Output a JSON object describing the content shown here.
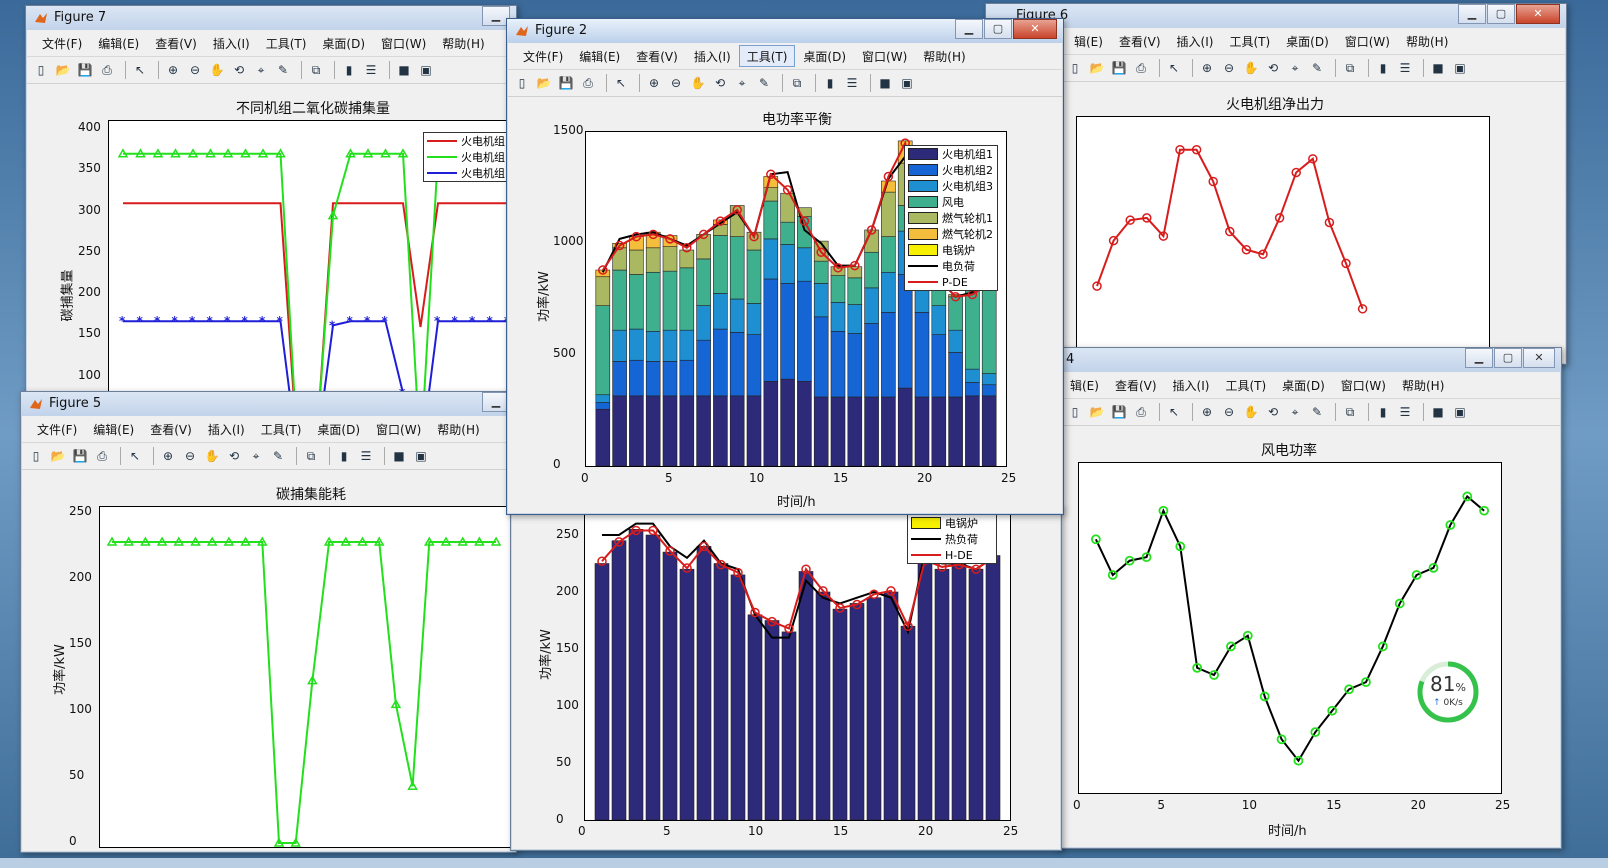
{
  "windows": {
    "fig7": {
      "title": "Figure 7",
      "plot_title": "不同机组二氧化碳捕集量",
      "ylabel": "碳捕集量"
    },
    "fig6": {
      "title": "Figure 6",
      "plot_title": "火电机组净出力"
    },
    "fig5": {
      "title": "Figure 5",
      "plot_title": "碳捕集能耗",
      "ylabel": "功率/kW"
    },
    "fig2": {
      "title": "Figure 2",
      "plot_title": "电功率平衡",
      "ylabel": "功率/kW",
      "xlabel": "时间/h"
    },
    "fig3": {
      "ylabel": "功率/kW"
    },
    "fig4": {
      "title_partial": "4",
      "plot_title": "风电功率",
      "xlabel": "时间/h"
    }
  },
  "menu": [
    "文件(F)",
    "编辑(E)",
    "查看(V)",
    "插入(I)",
    "工具(T)",
    "桌面(D)",
    "窗口(W)",
    "帮助(H)"
  ],
  "menu_tools_highlighted": "工具(T)",
  "menu_partial": [
    "辑(E)",
    "查看(V)",
    "插入(I)",
    "工具(T)",
    "桌面(D)",
    "窗口(W)",
    "帮助(H)"
  ],
  "toolbar_icons": [
    "new-file-icon",
    "open-folder-icon",
    "save-icon",
    "print-icon",
    "pointer-icon",
    "zoom-in-icon",
    "zoom-out-icon",
    "pan-hand-icon",
    "rotate-3d-icon",
    "data-cursor-icon",
    "brush-icon",
    "link-plot-icon",
    "colorbar-icon",
    "legend-icon",
    "hide-plot-tools-icon",
    "show-plot-tools-icon"
  ],
  "fig7_legend": [
    "火电机组",
    "火电机组",
    "火电机组"
  ],
  "fig2_legend": [
    "火电机组1",
    "火电机组2",
    "火电机组3",
    "风电",
    "燃气轮机1",
    "燃气轮机2",
    "电锅炉",
    "电负荷",
    "P-DE"
  ],
  "fig3_legend": [
    "电锅炉",
    "热负荷",
    "H-DE"
  ],
  "colors": {
    "unit1": "#2e2a7a",
    "unit2": "#1565d4",
    "unit3": "#1e8fd1",
    "wind": "#3fb08e",
    "gt1": "#a9b861",
    "gt2": "#f5bd3c",
    "eboiler": "#f7f000",
    "red": "#d81c1c",
    "green": "#22e01c",
    "blue": "#1f1fd8"
  },
  "gauge": {
    "percent": "81",
    "unit": "%",
    "speed": "0K/s"
  },
  "chart_data": [
    {
      "id": "fig2",
      "type": "bar",
      "stacked": true,
      "title": "电功率平衡",
      "xlabel": "时间/h",
      "ylabel": "功率/kW",
      "xlim": [
        0,
        25
      ],
      "ylim": [
        0,
        1500
      ],
      "xticks": [
        0,
        5,
        10,
        15,
        20,
        25
      ],
      "yticks": [
        0,
        500,
        1000,
        1500
      ],
      "x": [
        1,
        2,
        3,
        4,
        5,
        6,
        7,
        8,
        9,
        10,
        11,
        12,
        13,
        14,
        15,
        16,
        17,
        18,
        19,
        20,
        21,
        22,
        23,
        24
      ],
      "series": [
        {
          "name": "火电机组1",
          "values": [
            255,
            315,
            315,
            315,
            315,
            315,
            315,
            315,
            315,
            315,
            380,
            390,
            380,
            310,
            310,
            310,
            310,
            310,
            350,
            310,
            310,
            310,
            315,
            315
          ]
        },
        {
          "name": "火电机组2",
          "values": [
            30,
            155,
            160,
            155,
            155,
            160,
            250,
            300,
            285,
            275,
            460,
            430,
            450,
            360,
            295,
            285,
            330,
            380,
            510,
            380,
            280,
            200,
            60,
            50
          ]
        },
        {
          "name": "火电机组3",
          "values": [
            35,
            140,
            140,
            135,
            140,
            135,
            155,
            160,
            150,
            140,
            180,
            175,
            150,
            150,
            130,
            130,
            160,
            180,
            195,
            175,
            130,
            100,
            60,
            50
          ]
        },
        {
          "name": "风电",
          "values": [
            400,
            270,
            245,
            265,
            265,
            280,
            210,
            260,
            280,
            240,
            170,
            100,
            140,
            100,
            120,
            120,
            160,
            160,
            115,
            100,
            130,
            150,
            400,
            450
          ]
        },
        {
          "name": "燃气轮机1",
          "values": [
            130,
            100,
            110,
            110,
            110,
            80,
            110,
            50,
            140,
            80,
            60,
            130,
            40,
            90,
            40,
            50,
            100,
            200,
            190,
            40,
            50,
            10,
            0,
            0
          ]
        },
        {
          "name": "燃气轮机2",
          "values": [
            30,
            20,
            60,
            70,
            50,
            0,
            0,
            20,
            0,
            0,
            50,
            0,
            0,
            0,
            0,
            0,
            0,
            50,
            100,
            0,
            0,
            0,
            0,
            0
          ]
        },
        {
          "name": "电锅炉",
          "values": [
            0,
            0,
            0,
            0,
            0,
            0,
            0,
            0,
            0,
            0,
            0,
            0,
            0,
            0,
            0,
            0,
            0,
            0,
            0,
            0,
            0,
            0,
            0,
            0
          ]
        }
      ],
      "lines": [
        {
          "name": "电负荷",
          "values": [
            870,
            1020,
            1040,
            1050,
            1020,
            990,
            1040,
            1090,
            1140,
            1030,
            1310,
            1320,
            1060,
            1000,
            900,
            900,
            1060,
            1290,
            1390,
            1000,
            840,
            760,
            780,
            820
          ]
        },
        {
          "name": "P-DE",
          "values": [
            880,
            990,
            1030,
            1040,
            1020,
            980,
            1040,
            1100,
            1150,
            1030,
            1310,
            1240,
            1100,
            960,
            890,
            900,
            1060,
            1300,
            1450,
            1050,
            840,
            760,
            770,
            820
          ]
        }
      ]
    },
    {
      "id": "fig3",
      "type": "bar",
      "ylabel": "功率/kW",
      "ylim": [
        0,
        250
      ],
      "xlim": [
        0,
        25
      ],
      "yticks": [
        0,
        50,
        100,
        150,
        200,
        250
      ],
      "xticks": [
        0,
        5,
        10,
        15,
        20,
        25
      ],
      "x": [
        1,
        2,
        3,
        4,
        5,
        6,
        7,
        8,
        9,
        10,
        11,
        12,
        13,
        14,
        15,
        16,
        17,
        18,
        19,
        20,
        21,
        22,
        23,
        24
      ],
      "series": [
        {
          "name": "bars",
          "values": [
            225,
            245,
            255,
            250,
            235,
            220,
            240,
            225,
            215,
            180,
            175,
            165,
            218,
            200,
            185,
            190,
            195,
            200,
            170,
            230,
            220,
            225,
            220,
            232
          ]
        }
      ],
      "lines": [
        {
          "name": "热负荷",
          "values": [
            250,
            250,
            260,
            260,
            240,
            230,
            245,
            225,
            220,
            180,
            160,
            160,
            210,
            195,
            190,
            195,
            200,
            195,
            165,
            235,
            225,
            225,
            220,
            230
          ]
        },
        {
          "name": "H-DE",
          "values": [
            227,
            244,
            254,
            254,
            236,
            221,
            240,
            224,
            217,
            182,
            174,
            168,
            220,
            201,
            186,
            189,
            198,
            201,
            170,
            228,
            222,
            224,
            220,
            230
          ]
        }
      ]
    },
    {
      "id": "fig7",
      "type": "line",
      "title": "不同机组二氧化碳捕集量",
      "ylabel": "碳捕集量",
      "ylim": [
        0,
        400
      ],
      "yticks": [
        100,
        150,
        200,
        250,
        300,
        350,
        400
      ],
      "x": [
        1,
        2,
        3,
        4,
        5,
        6,
        7,
        8,
        9,
        10,
        11,
        12,
        13,
        14,
        15,
        16,
        17,
        18,
        19,
        20,
        21,
        22,
        23,
        24
      ],
      "series": [
        {
          "name": "火电机组",
          "color": "red",
          "values": [
            310,
            310,
            310,
            310,
            310,
            310,
            310,
            310,
            310,
            310,
            0,
            0,
            310,
            310,
            310,
            310,
            310,
            160,
            310,
            310,
            310,
            310,
            310,
            310
          ]
        },
        {
          "name": "火电机组",
          "color": "green",
          "values": [
            370,
            370,
            370,
            370,
            370,
            370,
            370,
            370,
            370,
            370,
            0,
            0,
            295,
            370,
            370,
            370,
            370,
            0,
            370,
            370,
            370,
            370,
            370,
            370
          ]
        },
        {
          "name": "火电机组",
          "color": "blue",
          "values": [
            167,
            167,
            167,
            167,
            167,
            167,
            167,
            167,
            167,
            167,
            0,
            0,
            162,
            167,
            167,
            167,
            80,
            0,
            167,
            167,
            167,
            167,
            167,
            167
          ]
        }
      ]
    },
    {
      "id": "fig5",
      "type": "line",
      "title": "碳捕集能耗",
      "ylabel": "功率/kW",
      "ylim": [
        0,
        250
      ],
      "yticks": [
        0,
        50,
        100,
        150,
        200,
        250
      ],
      "x": [
        1,
        2,
        3,
        4,
        5,
        6,
        7,
        8,
        9,
        10,
        11,
        12,
        13,
        14,
        15,
        16,
        17,
        18,
        19,
        20,
        21,
        22,
        23,
        24
      ],
      "series": [
        {
          "name": "s",
          "color": "green",
          "values": [
            228,
            228,
            228,
            228,
            228,
            228,
            228,
            228,
            228,
            228,
            0,
            0,
            123,
            228,
            228,
            228,
            228,
            105,
            43,
            228,
            228,
            228,
            228,
            228
          ]
        }
      ]
    },
    {
      "id": "fig6",
      "type": "line",
      "title": "火电机组净出力",
      "x": [
        5,
        6,
        7,
        8,
        9,
        10,
        11,
        12,
        13,
        14,
        15,
        16,
        17,
        18,
        19,
        20,
        21
      ],
      "series": [
        {
          "name": "s",
          "color": "red",
          "values": [
            400,
            600,
            690,
            700,
            620,
            1000,
            1000,
            860,
            640,
            560,
            540,
            700,
            900,
            960,
            680,
            500,
            300
          ]
        }
      ]
    },
    {
      "id": "fig4",
      "type": "line",
      "title": "风电功率",
      "xlabel": "时间/h",
      "xlim": [
        0,
        25
      ],
      "xticks": [
        0,
        5,
        10,
        15,
        20,
        25
      ],
      "x": [
        1,
        2,
        3,
        4,
        5,
        6,
        7,
        8,
        9,
        10,
        11,
        12,
        13,
        14,
        15,
        16,
        17,
        18,
        19,
        20,
        21,
        22,
        23,
        24
      ],
      "series": [
        {
          "name": "s",
          "color": "black",
          "values": [
            390,
            340,
            360,
            365,
            430,
            380,
            210,
            200,
            240,
            255,
            170,
            110,
            80,
            120,
            150,
            180,
            190,
            240,
            300,
            340,
            350,
            410,
            450,
            430
          ]
        }
      ]
    }
  ]
}
